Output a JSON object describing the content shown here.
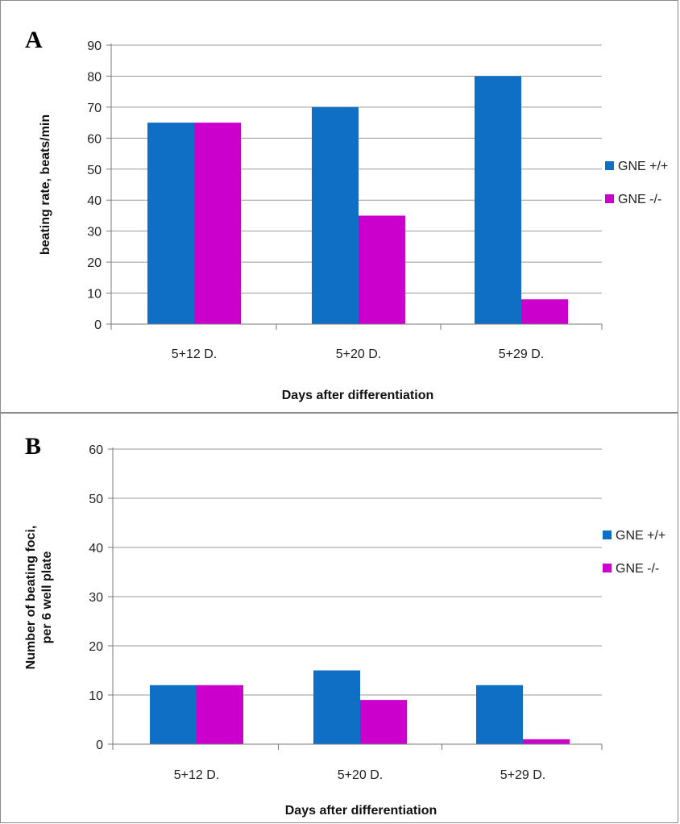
{
  "chart_data": [
    {
      "type": "bar",
      "panel_label": "A",
      "categories": [
        "5+12 D.",
        "5+20 D.",
        "5+29 D."
      ],
      "series": [
        {
          "name": "GNE +/+",
          "values": [
            65,
            70,
            80
          ],
          "color": "#0e6fc4"
        },
        {
          "name": "GNE -/-",
          "values": [
            65,
            35,
            8
          ],
          "color": "#cc00cc"
        }
      ],
      "xlabel": "Days after differentiation",
      "ylabel": "beating rate, beats/min",
      "ylim": [
        0,
        90
      ],
      "yticks": [
        0,
        10,
        20,
        30,
        40,
        50,
        60,
        70,
        80,
        90
      ],
      "grid": true,
      "legend": "right"
    },
    {
      "type": "bar",
      "panel_label": "B",
      "categories": [
        "5+12 D.",
        "5+20 D.",
        "5+29 D."
      ],
      "series": [
        {
          "name": "GNE +/+",
          "values": [
            12,
            15,
            12
          ],
          "color": "#0e6fc4"
        },
        {
          "name": "GNE -/-",
          "values": [
            12,
            9,
            1
          ],
          "color": "#cc00cc"
        }
      ],
      "xlabel": "Days after differentiation",
      "ylabel": [
        "Number  of beating foci,",
        "per 6 well plate"
      ],
      "ylim": [
        0,
        60
      ],
      "yticks": [
        0,
        10,
        20,
        30,
        40,
        50,
        60
      ],
      "grid": true,
      "legend": "right"
    }
  ]
}
